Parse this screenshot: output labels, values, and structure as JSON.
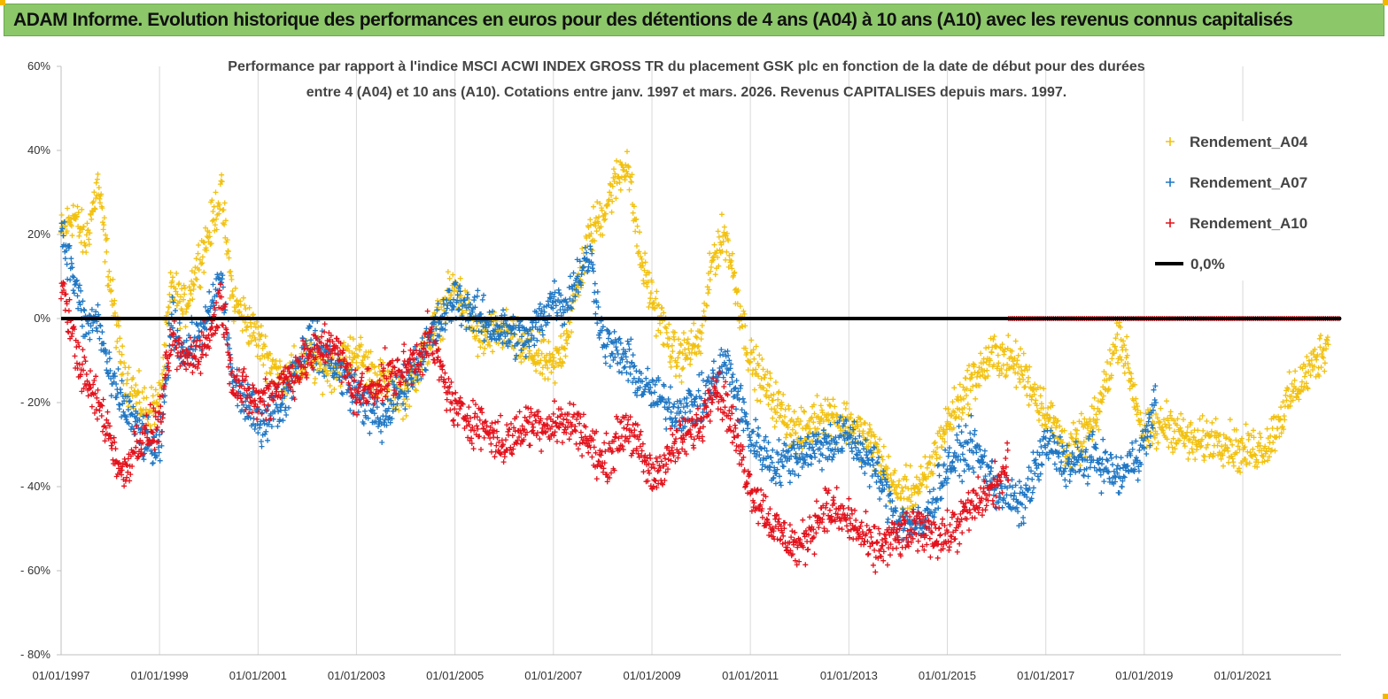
{
  "header": {
    "title": "ADAM Informe. Evolution historique des performances en euros pour des détentions de 4 ans (A04) à 10 ans (A10) avec les revenus connus capitalisés",
    "background": "#8cc76a"
  },
  "chart_data": {
    "type": "scatter",
    "title_lines": [
      "Performance par rapport à l'indice MSCI ACWI INDEX GROSS TR  du placement GSK plc en fonction de la date de début pour des durées",
      "entre 4 (A04) et 10 ans (A10). Cotations entre janv. 1997 et mars. 2026. Revenus CAPITALISES depuis mars. 1997."
    ],
    "xlabel": "",
    "ylabel": "",
    "x_range": [
      "1997-01-01",
      "2022-12-31"
    ],
    "ylim": [
      -80,
      60
    ],
    "y_unit": "%",
    "y_ticks": [
      -80,
      -60,
      -40,
      -20,
      0,
      20,
      40,
      60
    ],
    "y_tick_labels": [
      "- 80%",
      "- 60%",
      "- 40%",
      "- 20%",
      "0%",
      "20%",
      "40%",
      "60%"
    ],
    "x_ticks": [
      "1997-01-01",
      "1999-01-01",
      "2001-01-01",
      "2003-01-01",
      "2005-01-01",
      "2007-01-01",
      "2009-01-01",
      "2011-01-01",
      "2013-01-01",
      "2015-01-01",
      "2017-01-01",
      "2019-01-01",
      "2021-01-01"
    ],
    "x_tick_labels": [
      "01/01/1997",
      "01/01/1999",
      "01/01/2001",
      "01/01/2003",
      "01/01/2005",
      "01/01/2007",
      "01/01/2009",
      "01/01/2011",
      "01/01/2013",
      "01/01/2015",
      "01/01/2017",
      "01/01/2019",
      "01/01/2021"
    ],
    "vertical_grid": true,
    "legend_position": "top-right",
    "legend": [
      "Rendement_A04",
      "Rendement_A07",
      "Rendement_A10",
      "0,0%"
    ],
    "series": [
      {
        "name": "Rendement_A04",
        "color": "#f2c10f",
        "marker": "plus",
        "x": [
          "1997-01-01",
          "1997-04-01",
          "1997-07-01",
          "1997-10-01",
          "1998-01-01",
          "1998-04-01",
          "1998-07-01",
          "1998-10-01",
          "1999-01-01",
          "1999-04-01",
          "1999-07-01",
          "1999-10-01",
          "2000-01-01",
          "2000-04-01",
          "2000-07-01",
          "2000-10-01",
          "2001-01-01",
          "2001-07-01",
          "2002-01-01",
          "2002-07-01",
          "2003-01-01",
          "2003-07-01",
          "2004-01-01",
          "2004-07-01",
          "2005-01-01",
          "2005-07-01",
          "2006-01-01",
          "2006-07-01",
          "2007-01-01",
          "2007-04-01",
          "2007-07-01",
          "2007-10-01",
          "2008-01-01",
          "2008-04-01",
          "2008-07-01",
          "2008-10-01",
          "2009-01-01",
          "2009-07-01",
          "2010-01-01",
          "2010-04-01",
          "2010-07-01",
          "2011-01-01",
          "2011-07-01",
          "2012-01-01",
          "2012-07-01",
          "2013-01-01",
          "2013-07-01",
          "2014-01-01",
          "2014-07-01",
          "2015-01-01",
          "2015-07-01",
          "2016-01-01",
          "2016-07-01",
          "2017-01-01",
          "2017-07-01",
          "2018-01-01",
          "2018-07-01",
          "2019-01-01",
          "2019-07-01",
          "2020-01-01",
          "2020-07-01",
          "2021-01-01",
          "2021-07-01",
          "2022-01-01",
          "2022-07-01",
          "2022-10-01"
        ],
        "y": [
          20,
          25,
          18,
          32,
          8,
          -12,
          -18,
          -22,
          -20,
          8,
          2,
          12,
          20,
          30,
          4,
          0,
          -5,
          -15,
          -10,
          -12,
          -8,
          -15,
          -18,
          -5,
          8,
          -5,
          -3,
          -8,
          -12,
          -5,
          8,
          20,
          25,
          32,
          38,
          15,
          5,
          -10,
          -5,
          15,
          20,
          -10,
          -20,
          -28,
          -22,
          -25,
          -30,
          -42,
          -40,
          -25,
          -15,
          -8,
          -12,
          -22,
          -32,
          -25,
          -3,
          -28,
          -25,
          -30,
          -28,
          -32,
          -30,
          -18,
          -10,
          -5
        ]
      },
      {
        "name": "Rendement_A07",
        "color": "#1f77c4",
        "marker": "plus",
        "x": [
          "1997-01-01",
          "1997-04-01",
          "1997-07-01",
          "1997-10-01",
          "1998-01-01",
          "1998-04-01",
          "1998-07-01",
          "1998-10-01",
          "1999-01-01",
          "1999-04-01",
          "1999-07-01",
          "1999-10-01",
          "2000-01-01",
          "2000-04-01",
          "2000-07-01",
          "2000-10-01",
          "2001-01-01",
          "2001-07-01",
          "2002-01-01",
          "2002-07-01",
          "2003-01-01",
          "2003-07-01",
          "2004-01-01",
          "2004-07-01",
          "2005-01-01",
          "2005-07-01",
          "2006-01-01",
          "2006-07-01",
          "2007-01-01",
          "2007-04-01",
          "2007-07-01",
          "2007-10-01",
          "2008-01-01",
          "2008-04-01",
          "2008-07-01",
          "2008-10-01",
          "2009-01-01",
          "2009-07-01",
          "2010-01-01",
          "2010-04-01",
          "2010-07-01",
          "2011-01-01",
          "2011-07-01",
          "2012-01-01",
          "2012-07-01",
          "2013-01-01",
          "2013-07-01",
          "2014-01-01",
          "2014-07-01",
          "2015-01-01",
          "2015-07-01",
          "2016-01-01",
          "2016-07-01",
          "2017-01-01",
          "2017-07-01",
          "2018-01-01",
          "2018-07-01",
          "2019-01-01",
          "2019-04-01"
        ],
        "y": [
          22,
          10,
          -2,
          0,
          -15,
          -20,
          -25,
          -30,
          -32,
          0,
          -8,
          -5,
          0,
          10,
          -15,
          -20,
          -25,
          -20,
          -5,
          -10,
          -18,
          -25,
          -15,
          -5,
          5,
          0,
          -3,
          -5,
          5,
          3,
          10,
          15,
          -5,
          -8,
          -10,
          -15,
          -18,
          -22,
          -20,
          -15,
          -10,
          -28,
          -35,
          -32,
          -30,
          -28,
          -35,
          -48,
          -50,
          -35,
          -30,
          -40,
          -45,
          -30,
          -35,
          -33,
          -38,
          -30,
          -20
        ]
      },
      {
        "name": "Rendement_A10",
        "color": "#e3121c",
        "marker": "plus",
        "x": [
          "1997-01-01",
          "1997-04-01",
          "1997-07-01",
          "1997-10-01",
          "1998-01-01",
          "1998-04-01",
          "1998-07-01",
          "1998-10-01",
          "1999-01-01",
          "1999-04-01",
          "1999-07-01",
          "1999-10-01",
          "2000-01-01",
          "2000-04-01",
          "2000-07-01",
          "2000-10-01",
          "2001-01-01",
          "2001-07-01",
          "2002-01-01",
          "2002-07-01",
          "2003-01-01",
          "2003-07-01",
          "2004-01-01",
          "2004-07-01",
          "2005-01-01",
          "2005-07-01",
          "2006-01-01",
          "2006-07-01",
          "2007-01-01",
          "2007-07-01",
          "2008-01-01",
          "2008-07-01",
          "2009-01-01",
          "2009-07-01",
          "2010-01-01",
          "2010-04-01",
          "2010-07-01",
          "2011-01-01",
          "2011-07-01",
          "2012-01-01",
          "2012-07-01",
          "2013-01-01",
          "2013-07-01",
          "2014-01-01",
          "2014-07-01",
          "2015-01-01",
          "2015-07-01",
          "2016-01-01",
          "2016-04-01"
        ],
        "y": [
          10,
          -5,
          -15,
          -20,
          -28,
          -38,
          -30,
          -28,
          -25,
          -5,
          -10,
          -8,
          -5,
          5,
          -15,
          -18,
          -20,
          -15,
          -10,
          -5,
          -18,
          -15,
          -12,
          -5,
          -22,
          -25,
          -30,
          -25,
          -25,
          -25,
          -35,
          -25,
          -38,
          -30,
          -25,
          -15,
          -20,
          -40,
          -50,
          -55,
          -45,
          -48,
          -55,
          -52,
          -50,
          -52,
          -45,
          -40,
          -35
        ]
      },
      {
        "name": "Rendement_A10",
        "color": "#e3121c",
        "marker": "plus",
        "x": [
          "2016-04-01",
          "2022-12-31"
        ],
        "y": [
          0,
          0
        ]
      },
      {
        "name": "0,0%",
        "color": "#000000",
        "marker": "line",
        "x": [
          "1997-01-01",
          "2022-12-31"
        ],
        "y": [
          0,
          0
        ]
      }
    ]
  }
}
